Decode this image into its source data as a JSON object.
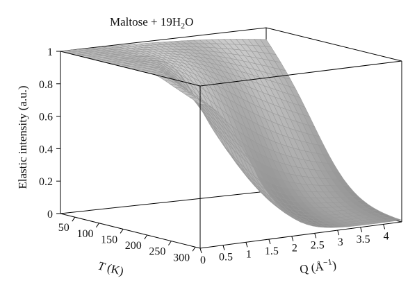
{
  "chart_data": {
    "type": "surface",
    "title": {
      "main": "Maltose + 19H",
      "sub": "2",
      "tail": "O"
    },
    "zlabel": "Elastic intensity (a.u.)",
    "xlabel": {
      "q": "Q (",
      "unit": "Å",
      "exp": "−1",
      "close": ")"
    },
    "ylabel": {
      "t": "T",
      "unit": " (K)"
    },
    "x_ticks": [
      "0",
      "0.5",
      "1",
      "1.5",
      "2",
      "2.5",
      "3",
      "3.5",
      "4"
    ],
    "y_ticks": [
      "50",
      "100",
      "150",
      "200",
      "250",
      "300"
    ],
    "z_ticks": [
      "0",
      "0.2",
      "0.4",
      "0.6",
      "0.8",
      "1"
    ],
    "q_range": [
      0,
      4.4
    ],
    "t_range": [
      20,
      310
    ],
    "z_range": [
      0,
      1
    ],
    "surface": "approximate elastic intensity I(Q,T) ≈ 1 at low T decaying with Q and T",
    "colors": {
      "surface_light": "#b4b4b4",
      "surface_dark": "#8c8c8c",
      "grid": "#9a9a9a",
      "box": "#000000"
    }
  }
}
